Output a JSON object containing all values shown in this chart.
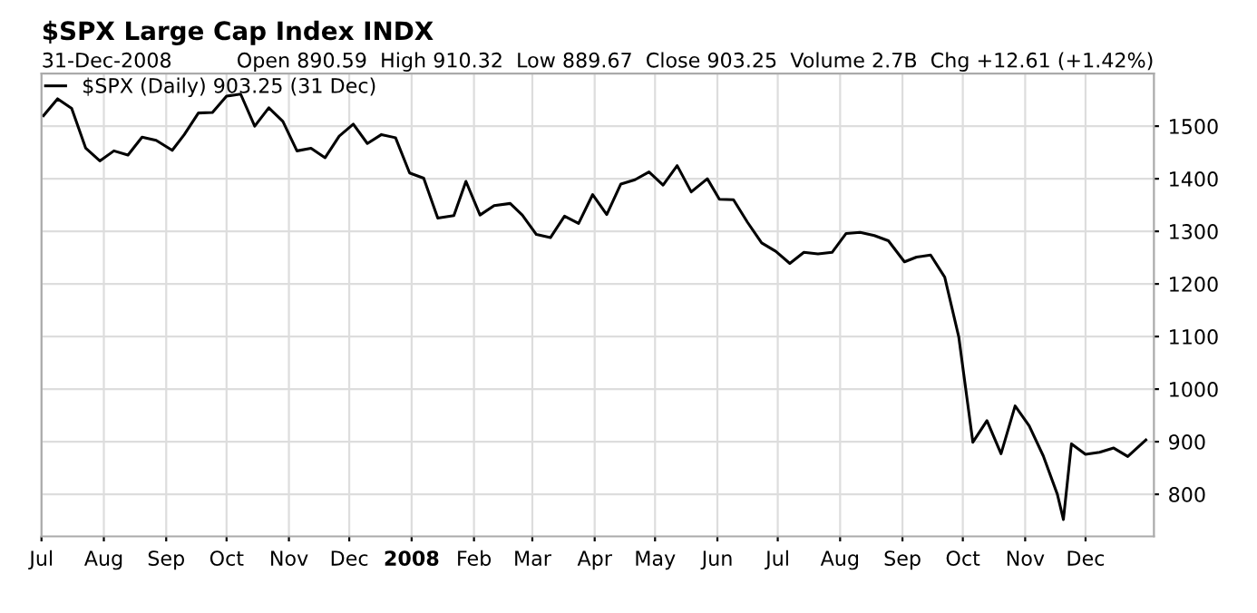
{
  "chart_data": {
    "type": "line",
    "title": "$SPX Large Cap Index INDX",
    "annotations": [
      "31-Dec-2008",
      "Open 890.59  High 910.32  Low 889.67  Close 903.25  Volume 2.7B  Chg +12.61 (+1.42%)"
    ],
    "series": [
      {
        "name": "$SPX (Daily) 903.25 (31 Dec)",
        "color": "#000000",
        "x": [
          "2007-07-02",
          "2007-07-09",
          "2007-07-16",
          "2007-07-23",
          "2007-07-30",
          "2007-08-06",
          "2007-08-13",
          "2007-08-20",
          "2007-08-27",
          "2007-09-04",
          "2007-09-10",
          "2007-09-17",
          "2007-09-24",
          "2007-10-01",
          "2007-10-08",
          "2007-10-15",
          "2007-10-22",
          "2007-10-29",
          "2007-11-05",
          "2007-11-12",
          "2007-11-19",
          "2007-11-26",
          "2007-12-03",
          "2007-12-10",
          "2007-12-17",
          "2007-12-24",
          "2007-12-31",
          "2008-01-07",
          "2008-01-14",
          "2008-01-22",
          "2008-01-28",
          "2008-02-04",
          "2008-02-11",
          "2008-02-19",
          "2008-02-25",
          "2008-03-03",
          "2008-03-10",
          "2008-03-17",
          "2008-03-24",
          "2008-03-31",
          "2008-04-07",
          "2008-04-14",
          "2008-04-21",
          "2008-04-28",
          "2008-05-05",
          "2008-05-12",
          "2008-05-19",
          "2008-05-27",
          "2008-06-02",
          "2008-06-09",
          "2008-06-16",
          "2008-06-23",
          "2008-06-30",
          "2008-07-07",
          "2008-07-14",
          "2008-07-21",
          "2008-07-28",
          "2008-08-04",
          "2008-08-11",
          "2008-08-18",
          "2008-08-25",
          "2008-09-02",
          "2008-09-08",
          "2008-09-15",
          "2008-09-22",
          "2008-09-29",
          "2008-10-06",
          "2008-10-13",
          "2008-10-20",
          "2008-10-27",
          "2008-11-03",
          "2008-11-10",
          "2008-11-17",
          "2008-11-20",
          "2008-11-24",
          "2008-12-01",
          "2008-12-08",
          "2008-12-15",
          "2008-12-22",
          "2008-12-31"
        ],
        "values": [
          1520,
          1552,
          1534,
          1458,
          1434,
          1453,
          1445,
          1479,
          1473,
          1454,
          1484,
          1525,
          1526,
          1557,
          1561,
          1500,
          1535,
          1509,
          1453,
          1458,
          1440,
          1481,
          1504,
          1467,
          1484,
          1478,
          1411,
          1401,
          1325,
          1330,
          1395,
          1331,
          1349,
          1353,
          1331,
          1294,
          1288,
          1329,
          1315,
          1370,
          1332,
          1390,
          1398,
          1413,
          1388,
          1425,
          1375,
          1400,
          1361,
          1360,
          1317,
          1278,
          1262,
          1239,
          1260,
          1257,
          1260,
          1296,
          1298,
          1292,
          1282,
          1242,
          1251,
          1255,
          1213,
          1099,
          899,
          940,
          877,
          968,
          930,
          873,
          800,
          752,
          896,
          876,
          880,
          888,
          872,
          903.25
        ]
      }
    ],
    "xlim": [
      "2007-07-01",
      "2009-01-04"
    ],
    "xticks": [
      {
        "value": "2007-07-01",
        "label": "Jul"
      },
      {
        "value": "2007-08-01",
        "label": "Aug"
      },
      {
        "value": "2007-09-01",
        "label": "Sep"
      },
      {
        "value": "2007-10-01",
        "label": "Oct"
      },
      {
        "value": "2007-11-01",
        "label": "Nov"
      },
      {
        "value": "2007-12-01",
        "label": "Dec"
      },
      {
        "value": "2008-01-01",
        "label": "2008"
      },
      {
        "value": "2008-02-01",
        "label": "Feb"
      },
      {
        "value": "2008-03-01",
        "label": "Mar"
      },
      {
        "value": "2008-04-01",
        "label": "Apr"
      },
      {
        "value": "2008-05-01",
        "label": "May"
      },
      {
        "value": "2008-06-01",
        "label": "Jun"
      },
      {
        "value": "2008-07-01",
        "label": "Jul"
      },
      {
        "value": "2008-08-01",
        "label": "Aug"
      },
      {
        "value": "2008-09-01",
        "label": "Sep"
      },
      {
        "value": "2008-10-01",
        "label": "Oct"
      },
      {
        "value": "2008-11-01",
        "label": "Nov"
      },
      {
        "value": "2008-12-01",
        "label": "Dec"
      }
    ],
    "ylim": [
      720,
      1600
    ],
    "yticks": [
      800,
      900,
      1000,
      1100,
      1200,
      1300,
      1400,
      1500
    ],
    "grid": true,
    "legend": "top left",
    "marker": "none",
    "line_style": "solid"
  }
}
